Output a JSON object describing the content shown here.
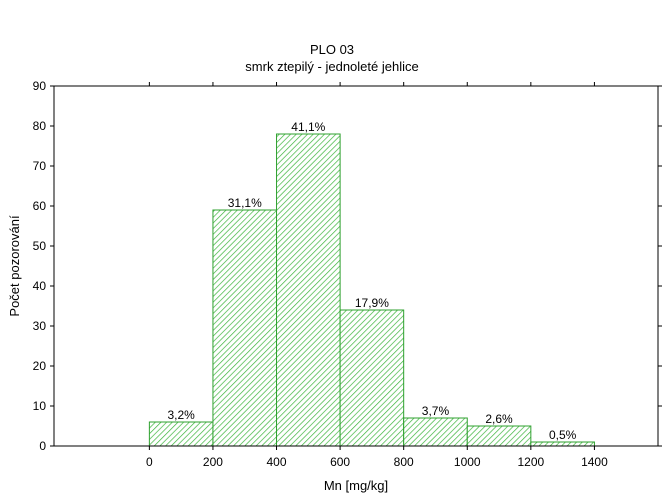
{
  "chart_data": {
    "type": "bar",
    "title": "PLO 03",
    "subtitle": "smrk ztepilý - jednoleté jehlice",
    "xlabel": "Mn [mg/kg]",
    "ylabel": "Počet pozorování",
    "xlim": [
      -300,
      1600
    ],
    "ylim": [
      0,
      90
    ],
    "x_ticks": [
      0,
      200,
      400,
      600,
      800,
      1000,
      1200,
      1400
    ],
    "x_tick_labels": [
      "0",
      "200",
      "400",
      "600",
      "800",
      "1000",
      "1200",
      "1400"
    ],
    "y_ticks": [
      0,
      10,
      20,
      30,
      40,
      50,
      60,
      70,
      80,
      90
    ],
    "y_tick_labels": [
      "0",
      "10",
      "20",
      "30",
      "40",
      "50",
      "60",
      "70",
      "80",
      "90"
    ],
    "grid": false,
    "bars": [
      {
        "x0": 0,
        "x1": 200,
        "value": 6,
        "label": "3,2%"
      },
      {
        "x0": 200,
        "x1": 400,
        "value": 59,
        "label": "31,1%"
      },
      {
        "x0": 400,
        "x1": 600,
        "value": 78,
        "label": "41,1%"
      },
      {
        "x0": 600,
        "x1": 800,
        "value": 34,
        "label": "17,9%"
      },
      {
        "x0": 800,
        "x1": 1000,
        "value": 7,
        "label": "3,7%"
      },
      {
        "x0": 1000,
        "x1": 1200,
        "value": 5,
        "label": "2,6%"
      },
      {
        "x0": 1200,
        "x1": 1400,
        "value": 1,
        "label": "0,5%"
      }
    ],
    "colors": {
      "bar_stroke": "#2fa12f",
      "bar_hatch": "#3cb43c",
      "bar_fill": "#ffffff",
      "axis": "#000000"
    }
  }
}
